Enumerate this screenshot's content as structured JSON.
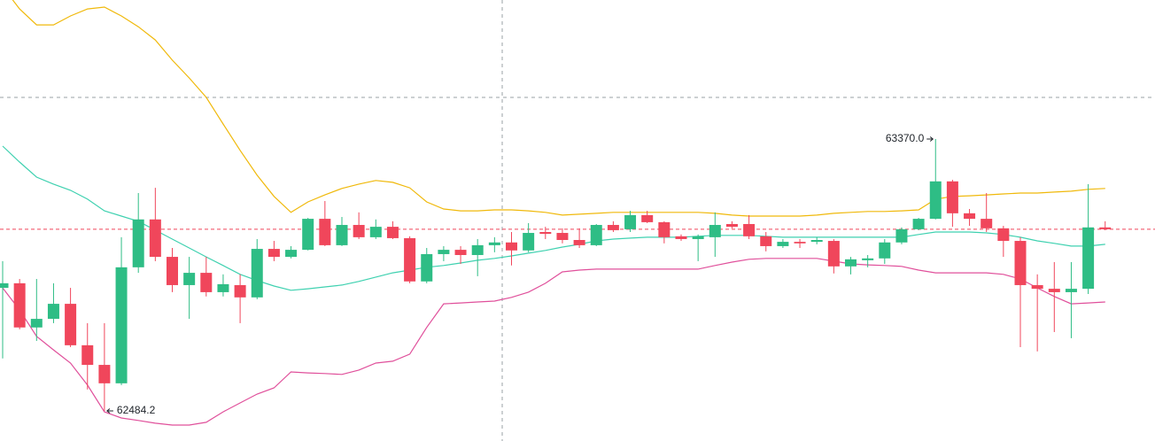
{
  "chart_data": {
    "type": "candlestick",
    "ylim": [
      62386,
      63823
    ],
    "up_color": "#2ebd85",
    "down_color": "#f0465b",
    "high_label": "63370.0",
    "low_label": "62484.2",
    "open": [
      62885,
      62900,
      62756,
      62784,
      62833,
      62698,
      62634,
      62574,
      62952,
      63108,
      62986,
      62894,
      62934,
      62871,
      62894,
      62854,
      63012,
      62986,
      63009,
      63110,
      63024,
      63090,
      63050,
      63084,
      63047,
      62906,
      62995,
      63009,
      62992,
      63024,
      63033,
      63007,
      63067,
      63064,
      63041,
      63024,
      63090,
      63076,
      63122,
      63099,
      63053,
      63044,
      63050,
      63093,
      63093,
      63053,
      63021,
      63035,
      63035,
      63038,
      62955,
      62975,
      62981,
      63033,
      63076,
      63110,
      63232,
      63128,
      63110,
      63079,
      63038,
      62894,
      62882,
      62871,
      62882,
      63082
    ],
    "high": [
      62972,
      62914,
      62914,
      62900,
      62885,
      62770,
      62770,
      63050,
      63194,
      63211,
      63015,
      62986,
      62986,
      62929,
      62929,
      63044,
      63038,
      63021,
      63113,
      63168,
      63116,
      63131,
      63108,
      63102,
      63053,
      63015,
      63021,
      63021,
      63044,
      63050,
      63067,
      63096,
      63084,
      63079,
      63079,
      63093,
      63102,
      63136,
      63136,
      63102,
      63059,
      63059,
      63131,
      63102,
      63122,
      63067,
      63044,
      63044,
      63050,
      63044,
      62986,
      62992,
      63044,
      63082,
      63113,
      63370,
      63237,
      63142,
      63194,
      63087,
      63050,
      62929,
      62969,
      62969,
      63223,
      63102
    ],
    "low": [
      62655,
      62750,
      62712,
      62770,
      62692,
      62554,
      62484.2,
      62568,
      62934,
      62972,
      62871,
      62784,
      62857,
      62857,
      62770,
      62848,
      62972,
      62981,
      63007,
      63021,
      63021,
      63044,
      63044,
      63044,
      62900,
      62900,
      62972,
      62963,
      62923,
      63001,
      62958,
      63001,
      63044,
      63030,
      63015,
      63021,
      63067,
      63067,
      63096,
      63030,
      63038,
      62972,
      62986,
      63079,
      63044,
      63004,
      63015,
      63015,
      63027,
      62932,
      62929,
      62952,
      62963,
      63027,
      63073,
      63108,
      63084,
      63087,
      63067,
      62986,
      62692,
      62678,
      62741,
      62721,
      62865,
      63073
    ],
    "close": [
      62900,
      62756,
      62784,
      62833,
      62698,
      62634,
      62574,
      62952,
      63108,
      62986,
      62894,
      62934,
      62871,
      62897,
      62854,
      63012,
      62986,
      63009,
      63110,
      63024,
      63090,
      63050,
      63084,
      63047,
      62906,
      62995,
      63009,
      62992,
      63024,
      63033,
      63007,
      63064,
      63061,
      63041,
      63024,
      63090,
      63073,
      63122,
      63099,
      63050,
      63044,
      63053,
      63090,
      63084,
      63053,
      63021,
      63035,
      63030,
      63041,
      62955,
      62978,
      62981,
      63033,
      63076,
      63110,
      63232,
      63128,
      63110,
      63079,
      63038,
      62894,
      62882,
      62871,
      62882,
      63082,
      63076
    ],
    "bands": [
      {
        "color": "#f0b90b",
        "values": [
          63866,
          63794,
          63742,
          63742,
          63771,
          63794,
          63800,
          63771,
          63736,
          63693,
          63627,
          63569,
          63506,
          63419,
          63333,
          63252,
          63183,
          63131,
          63165,
          63188,
          63209,
          63223,
          63235,
          63229,
          63211,
          63165,
          63142,
          63136,
          63136,
          63139,
          63139,
          63136,
          63131,
          63122,
          63125,
          63128,
          63131,
          63131,
          63131,
          63131,
          63131,
          63131,
          63128,
          63122,
          63119,
          63119,
          63119,
          63119,
          63122,
          63128,
          63131,
          63134,
          63134,
          63136,
          63139,
          63174,
          63183,
          63185,
          63188,
          63191,
          63194,
          63194,
          63197,
          63200,
          63206,
          63209
        ]
      },
      {
        "color": "#3fd1b0",
        "values": [
          63347,
          63295,
          63246,
          63223,
          63203,
          63174,
          63136,
          63119,
          63102,
          63073,
          63044,
          63015,
          62986,
          62958,
          62929,
          62909,
          62891,
          62877,
          62882,
          62888,
          62894,
          62906,
          62920,
          62934,
          62943,
          62952,
          62958,
          62966,
          62975,
          62981,
          62989,
          62998,
          63007,
          63018,
          63027,
          63038,
          63044,
          63047,
          63050,
          63050,
          63050,
          63053,
          63056,
          63056,
          63056,
          63053,
          63050,
          63050,
          63050,
          63050,
          63050,
          63050,
          63050,
          63050,
          63059,
          63067,
          63067,
          63067,
          63064,
          63059,
          63050,
          63038,
          63030,
          63021,
          63021,
          63027
        ]
      },
      {
        "color": "#e0509b",
        "values": [
          62885,
          62813,
          62727,
          62683,
          62640,
          62568,
          62481,
          62461,
          62453,
          62444,
          62438,
          62438,
          62447,
          62481,
          62510,
          62539,
          62559,
          62611,
          62608,
          62606,
          62603,
          62617,
          62640,
          62646,
          62669,
          62756,
          62833,
          62836,
          62839,
          62842,
          62854,
          62871,
          62900,
          62937,
          62943,
          62946,
          62946,
          62946,
          62946,
          62946,
          62946,
          62946,
          62958,
          62969,
          62978,
          62981,
          62981,
          62981,
          62981,
          62972,
          62963,
          62960,
          62958,
          62955,
          62943,
          62934,
          62934,
          62934,
          62934,
          62929,
          62914,
          62885,
          62857,
          62833,
          62836,
          62839
        ]
      }
    ]
  }
}
